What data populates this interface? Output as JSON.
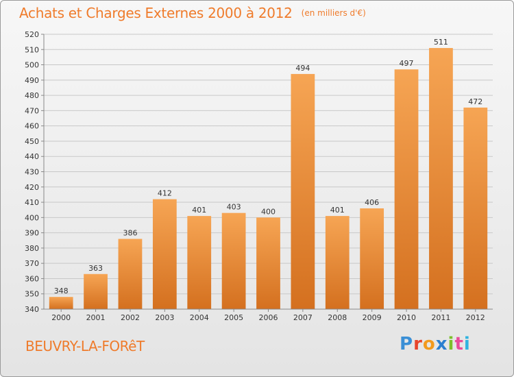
{
  "header": {
    "title": "Achats et Charges Externes 2000 à 2012",
    "unit": "(en milliers d'€)"
  },
  "footer": {
    "commune": "BEUVRY-LA-FORêT",
    "logo_text": "Proxiti",
    "logo_colors": [
      "#3a8fd6",
      "#e8452c",
      "#f29a1e",
      "#2b7fd0",
      "#7cbf2b",
      "#e94b9a",
      "#2fb3e0"
    ]
  },
  "colors": {
    "bar_top": "#f6a554",
    "bar_bottom": "#d4701f",
    "accent": "#ef7b2b",
    "grid": "#c8c8c8"
  },
  "chart_data": {
    "type": "bar",
    "title": "Achats et Charges Externes 2000 à 2012",
    "categories": [
      "2000",
      "2001",
      "2002",
      "2003",
      "2004",
      "2005",
      "2006",
      "2007",
      "2008",
      "2009",
      "2010",
      "2011",
      "2012"
    ],
    "values": [
      348,
      363,
      386,
      412,
      401,
      403,
      400,
      494,
      401,
      406,
      497,
      511,
      472
    ],
    "ylim": [
      340,
      520
    ],
    "yticks": [
      340,
      350,
      360,
      370,
      380,
      390,
      400,
      410,
      420,
      430,
      440,
      450,
      460,
      470,
      480,
      490,
      500,
      510,
      520
    ],
    "grid": true,
    "xlabel": "",
    "ylabel": ""
  }
}
